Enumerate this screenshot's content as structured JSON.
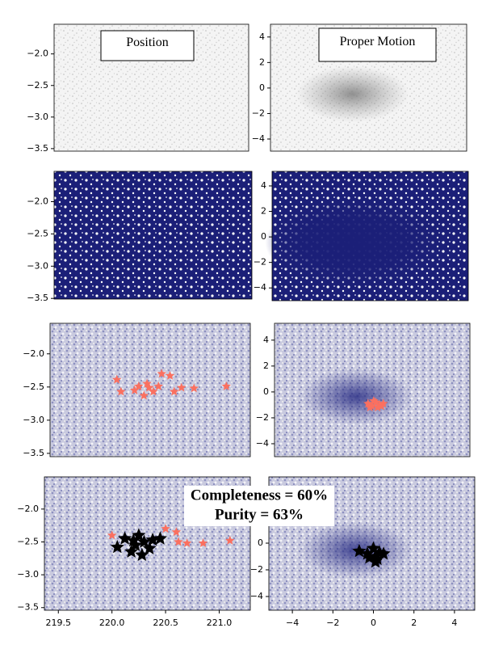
{
  "chart_data": [
    {
      "type": "scatter",
      "title": "Position",
      "xlim": [
        219.37,
        221.29
      ],
      "ylim": [
        -3.54,
        -1.53
      ],
      "yticks": [
        {
          "value": -2.0,
          "label": "−2.0"
        },
        {
          "value": -2.5,
          "label": "−2.5"
        },
        {
          "value": -3.0,
          "label": "−3.0"
        },
        {
          "value": -3.5,
          "label": "−3.5"
        }
      ],
      "series": []
    },
    {
      "type": "scatter",
      "title": "Proper Motion",
      "xlim": [
        -5.16,
        5.0
      ],
      "ylim": [
        -4.95,
        5.0
      ],
      "yticks": [
        4,
        2,
        0,
        {
          "value": -2,
          "label": "−2"
        },
        {
          "value": -4,
          "label": "−4"
        }
      ],
      "series": []
    },
    {
      "type": "scatter",
      "xlim": [
        219.37,
        221.29
      ],
      "ylim": [
        -3.51,
        -1.53
      ],
      "yticks": [
        {
          "value": -2.0,
          "label": "−2.0"
        },
        {
          "value": -2.5,
          "label": "−2.5"
        },
        {
          "value": -3.0,
          "label": "−3.0"
        },
        {
          "value": -3.5,
          "label": "−3.5"
        }
      ],
      "series": []
    },
    {
      "type": "scatter",
      "xlim": [
        -5.16,
        5.0
      ],
      "ylim": [
        -5.0,
        5.14
      ],
      "yticks": [
        4,
        2,
        0,
        {
          "value": -2,
          "label": "−2"
        },
        {
          "value": -4,
          "label": "−4"
        }
      ],
      "series": []
    },
    {
      "type": "scatter",
      "xlim": [
        219.37,
        221.29
      ],
      "ylim": [
        -3.55,
        -1.54
      ],
      "yticks": [
        {
          "value": -2.0,
          "label": "−2.0"
        },
        {
          "value": -2.5,
          "label": "−2.5"
        },
        {
          "value": -3.0,
          "label": "−3.0"
        },
        {
          "value": -3.5,
          "label": "−3.5"
        }
      ],
      "series": [
        {
          "color": "#fa7060",
          "x": [
            220.01,
            220.05,
            220.22,
            220.27,
            220.32,
            220.36,
            220.41,
            220.44,
            220.52,
            220.56,
            220.63,
            220.75,
            221.06,
            220.18,
            220.3
          ],
          "y": [
            -2.39,
            -2.57,
            -2.49,
            -2.63,
            -2.51,
            -2.57,
            -2.49,
            -2.3,
            -2.33,
            -2.57,
            -2.51,
            -2.52,
            -2.49,
            -2.55,
            -2.45
          ]
        }
      ]
    },
    {
      "type": "scatter",
      "xlim": [
        -5.16,
        5.0
      ],
      "ylim": [
        -5.0,
        5.3
      ],
      "yticks": [
        4,
        2,
        0,
        {
          "value": -2,
          "label": "−2"
        },
        {
          "value": -4,
          "label": "−4"
        }
      ],
      "series": [
        {
          "color": "#fa7060",
          "x": [
            -0.3,
            -0.1,
            0.1,
            0.3,
            0.5,
            -0.2,
            0.0,
            0.2,
            0.4
          ],
          "y": [
            -0.9,
            -1.1,
            -0.8,
            -1.0,
            -0.9,
            -1.2,
            -0.7,
            -1.2,
            -1.1
          ]
        }
      ]
    },
    {
      "type": "scatter",
      "xlim": [
        219.37,
        221.29
      ],
      "ylim": [
        -3.54,
        -1.51
      ],
      "xticks": [
        219.5,
        {
          "value": 220.0,
          "label": "220.0"
        },
        220.5,
        {
          "value": 221.0,
          "label": "221.0"
        }
      ],
      "yticks": [
        {
          "value": -2.0,
          "label": "−2.0"
        },
        {
          "value": -2.5,
          "label": "−2.5"
        },
        {
          "value": -3.0,
          "label": "−3.0"
        },
        {
          "value": -3.5,
          "label": "−3.5"
        }
      ],
      "annotations": [
        "Completeness = 60%",
        "Purity = 63%"
      ],
      "series": [
        {
          "color": "#fa7060",
          "x": [
            220.0,
            220.5,
            220.6,
            220.7,
            220.85,
            221.1,
            220.62
          ],
          "y": [
            -2.4,
            -2.3,
            -2.35,
            -2.52,
            -2.52,
            -2.48,
            -2.5
          ]
        },
        {
          "color": "#000000",
          "x": [
            220.05,
            220.12,
            220.18,
            220.22,
            220.25,
            220.3,
            220.35,
            220.38,
            220.45,
            220.28,
            220.2
          ],
          "y": [
            -2.58,
            -2.45,
            -2.65,
            -2.55,
            -2.4,
            -2.5,
            -2.6,
            -2.47,
            -2.45,
            -2.7,
            -2.48
          ]
        }
      ]
    },
    {
      "type": "scatter",
      "xlim": [
        -5.16,
        5.0
      ],
      "ylim": [
        -5.03,
        4.97
      ],
      "xticks": [
        {
          "value": -4,
          "label": "−4"
        },
        {
          "value": -2,
          "label": "−2"
        },
        0,
        2,
        4
      ],
      "yticks": [
        0,
        {
          "value": -2,
          "label": "−2"
        },
        {
          "value": -4,
          "label": "−4"
        }
      ],
      "series": [
        {
          "color": "#000000",
          "x": [
            -0.7,
            -0.3,
            0.0,
            0.1,
            0.3,
            0.5,
            0.1,
            -0.2,
            0.2
          ],
          "y": [
            -0.6,
            -0.8,
            -0.4,
            -1.0,
            -0.7,
            -0.8,
            -1.4,
            -1.1,
            -1.2
          ]
        }
      ]
    }
  ]
}
